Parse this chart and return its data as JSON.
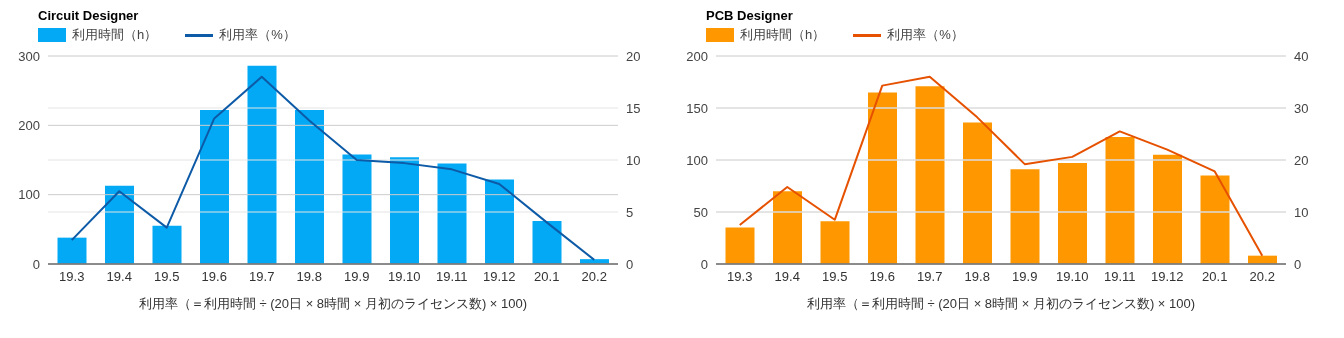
{
  "chart_data": [
    {
      "type": "bar",
      "title": "Circuit Designer",
      "categories": [
        "19.3",
        "19.4",
        "19.5",
        "19.6",
        "19.7",
        "19.8",
        "19.9",
        "19.10",
        "19.11",
        "19.12",
        "20.1",
        "20.2"
      ],
      "series": [
        {
          "name": "利用時間（h）",
          "color": "#03a9f4",
          "values": [
            38,
            113,
            55,
            222,
            286,
            222,
            158,
            154,
            145,
            122,
            62,
            7
          ]
        },
        {
          "name": "利用率（%）",
          "type": "line",
          "axis": "y2",
          "color": "#0d5aa7",
          "values": [
            2.3,
            7.0,
            3.5,
            14.0,
            18.0,
            13.8,
            10.0,
            9.7,
            9.1,
            7.7,
            4.0,
            0.4
          ]
        }
      ],
      "xlabel": "利用率（＝利用時間 ÷ (20日 × 8時間 × 月初のライセンス数) × 100)",
      "ylim": [
        0,
        300
      ],
      "yticks": [
        0,
        100,
        200,
        300
      ],
      "y2lim": [
        0,
        20
      ],
      "y2ticks": [
        0,
        5,
        10,
        15,
        20
      ],
      "grid": true,
      "legend": "top left"
    },
    {
      "type": "bar",
      "title": "PCB Designer",
      "categories": [
        "19.3",
        "19.4",
        "19.5",
        "19.6",
        "19.7",
        "19.8",
        "19.9",
        "19.10",
        "19.11",
        "19.12",
        "20.1",
        "20.2"
      ],
      "series": [
        {
          "name": "利用時間（h）",
          "color": "#ff9800",
          "values": [
            35,
            70,
            41,
            165,
            171,
            136,
            91,
            97,
            122,
            105,
            85,
            8
          ]
        },
        {
          "name": "利用率（%）",
          "type": "line",
          "axis": "y2",
          "color": "#e65100",
          "values": [
            7.5,
            14.8,
            8.5,
            34.3,
            36.0,
            28.2,
            19.2,
            20.6,
            25.5,
            22.0,
            17.8,
            1.6
          ]
        }
      ],
      "xlabel": "利用率（＝利用時間 ÷ (20日 × 8時間 × 月初のライセンス数) × 100)",
      "ylim": [
        0,
        200
      ],
      "yticks": [
        0,
        50,
        100,
        150,
        200
      ],
      "y2lim": [
        0,
        40
      ],
      "y2ticks": [
        0,
        10,
        20,
        30,
        40
      ],
      "grid": true,
      "legend": "top left"
    }
  ]
}
